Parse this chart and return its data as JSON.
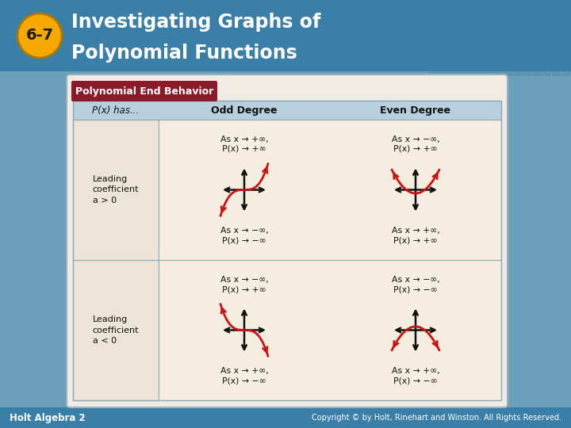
{
  "title_number": "6-7",
  "title_number_bg": "#f5a800",
  "title_text_line1": "Investigating Graphs of",
  "title_text_line2": "Polynomial Functions",
  "title_bg": "#3a7fa8",
  "header_text": "Polynomial End Behavior",
  "header_bg": "#8b1a2a",
  "header_text_color": "#ffffff",
  "table_bg": "#f5ede0",
  "col_header_bg": "#b8d0de",
  "col1_label": "P(x) has...",
  "col2_label": "Odd Degree",
  "col3_label": "Even Degree",
  "row1_label_line1": "Leading",
  "row1_label_line2": "coefficient",
  "row1_label_line3": "a > 0",
  "row2_label_line1": "Leading",
  "row2_label_line2": "coefficient",
  "row2_label_line3": "a < 0",
  "curve_color": "#cc1111",
  "axis_color": "#111111",
  "footer_text_left": "Holt Algebra 2",
  "footer_text_right": "Copyright © by Holt, Rinehart and Winston. All Rights Reserved.",
  "footer_bg": "#3a7fa8",
  "bg_color": "#6ba0bc",
  "ann_r1c2_t1": "As x → +∞,",
  "ann_r1c2_t2": "P(x) → +∞",
  "ann_r1c2_b1": "As x → −∞,",
  "ann_r1c2_b2": "P(x) → −∞",
  "ann_r1c3_t1": "As x → −∞,",
  "ann_r1c3_t2": "P(x) → +∞",
  "ann_r1c3_b1": "As x → +∞,",
  "ann_r1c3_b2": "P(x) → +∞",
  "ann_r2c2_t1": "As x → −∞,",
  "ann_r2c2_t2": "P(x) → +∞",
  "ann_r2c2_b1": "As x → +∞,",
  "ann_r2c2_b2": "P(x) → −∞",
  "ann_r2c3_t1": "As x → −∞,",
  "ann_r2c3_t2": "P(x) → −∞",
  "ann_r2c3_b1": "As x → +∞,",
  "ann_r2c3_b2": "P(x) → −∞"
}
